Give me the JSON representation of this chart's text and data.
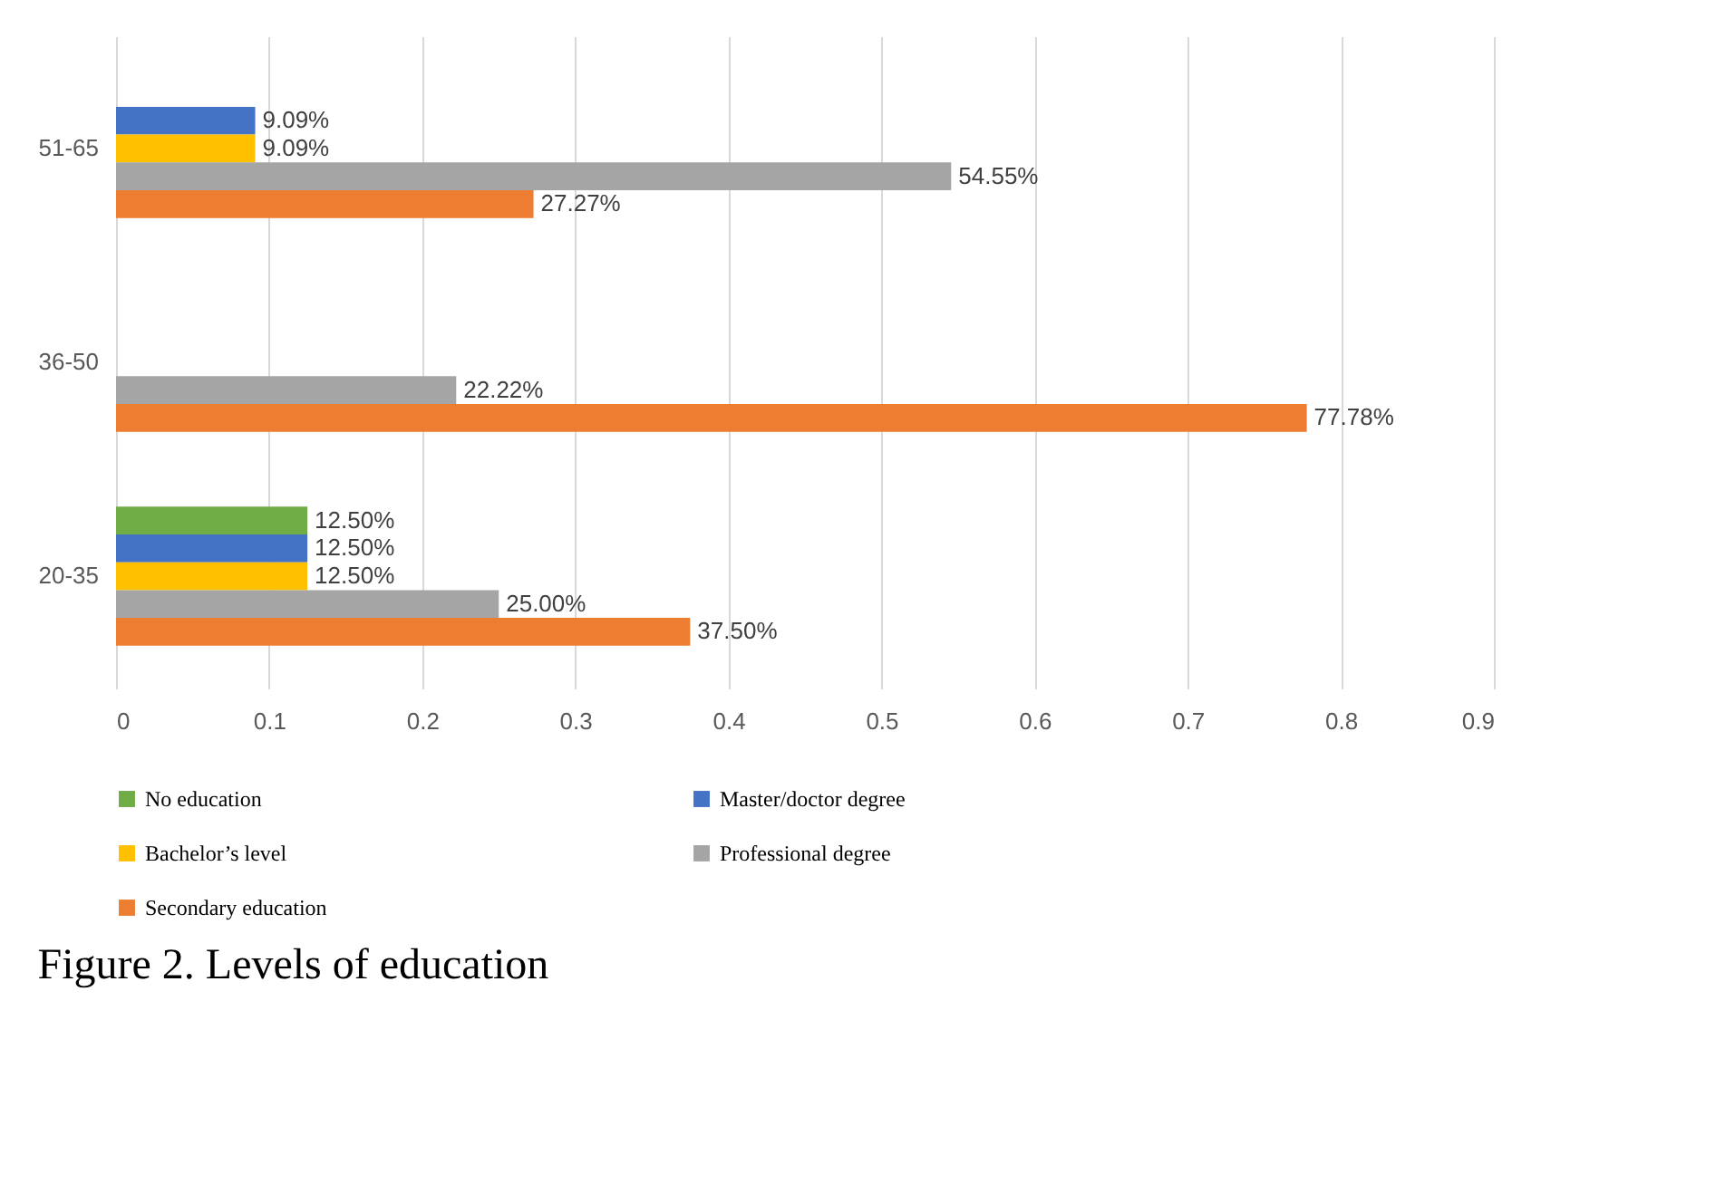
{
  "chart_data": {
    "type": "bar",
    "orientation": "horizontal",
    "title": "Figure 2. Levels of education",
    "categories": [
      "51-65",
      "36-50",
      "20-35"
    ],
    "series": [
      {
        "name": "No education",
        "color": "#70ad47",
        "values": [
          null,
          null,
          0.125
        ],
        "value_labels": [
          null,
          null,
          "12.50%"
        ]
      },
      {
        "name": "Master/doctor degree",
        "color": "#4472c4",
        "values": [
          0.0909,
          null,
          0.125
        ],
        "value_labels": [
          "9.09%",
          null,
          "12.50%"
        ]
      },
      {
        "name": "Bachelor’s level",
        "color": "#ffc000",
        "values": [
          0.0909,
          null,
          0.125
        ],
        "value_labels": [
          "9.09%",
          null,
          "12.50%"
        ]
      },
      {
        "name": "Professional degree",
        "color": "#a5a5a5",
        "values": [
          0.5455,
          0.2222,
          0.25
        ],
        "value_labels": [
          "54.55%",
          "22.22%",
          "25.00%"
        ]
      },
      {
        "name": "Secondary education",
        "color": "#ed7d31",
        "values": [
          0.2727,
          0.7778,
          0.375
        ],
        "value_labels": [
          "27.27%",
          "77.78%",
          "37.50%"
        ]
      }
    ],
    "xlim": [
      0,
      0.9
    ],
    "xticks": [
      0,
      0.1,
      0.2,
      0.3,
      0.4,
      0.5,
      0.6,
      0.7,
      0.8,
      0.9
    ],
    "grid": "x",
    "legend": "bottom"
  }
}
